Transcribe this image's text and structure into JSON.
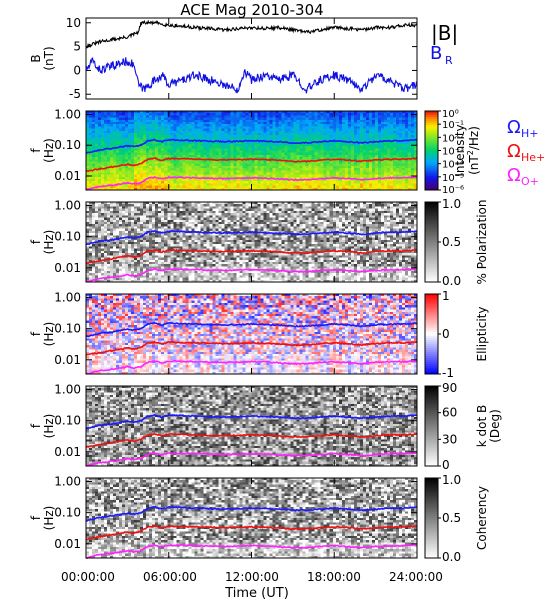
{
  "title": "ACE Mag 2010-304",
  "colors": {
    "B_total": "#000000",
    "B_R": "#1010e0",
    "H_plus": "#1a1aff",
    "He_plus": "#ee1111",
    "O_plus": "#ff22ff"
  },
  "chart_data": [
    {
      "type": "line",
      "panel": "magnetic-field",
      "ylabel": [
        "B",
        "(nT)"
      ],
      "ylim": [
        -6,
        11
      ],
      "yticks": [
        "10",
        "5",
        "0",
        "-5"
      ],
      "legend": [
        "|B|",
        "B"
      ],
      "legend_sub": "R",
      "legend_placement": "right",
      "series": [
        {
          "name": "|B|",
          "color": "#000000",
          "x": [
            0,
            1,
            2,
            3,
            3.8,
            4,
            5,
            6,
            8,
            10,
            12,
            13,
            14,
            15,
            16,
            17,
            18,
            19,
            20,
            21,
            22,
            23,
            24
          ],
          "values": [
            5,
            6,
            6.5,
            7,
            8,
            10,
            10,
            9.5,
            9,
            8.5,
            9,
            8.8,
            9,
            8.5,
            8,
            8.5,
            9,
            8.8,
            8.5,
            9,
            9,
            9.5,
            9.5
          ]
        },
        {
          "name": "B",
          "color": "#1010e0",
          "x": [
            0,
            0.5,
            1,
            2,
            3,
            3.5,
            3.8,
            4.2,
            5,
            5.5,
            6,
            7,
            8,
            9,
            10,
            11,
            11.5,
            12,
            13,
            14,
            15,
            16,
            17,
            18,
            19,
            20,
            21,
            22,
            23,
            24
          ],
          "values": [
            0,
            2,
            0,
            1,
            2,
            1,
            -3,
            -4,
            -2,
            -1,
            -3,
            -2,
            -1,
            -2,
            -3,
            -4,
            0,
            -2,
            -1,
            -2,
            -1,
            -4,
            -2,
            -1,
            -2,
            -4,
            -1,
            -2,
            -4,
            -3
          ]
        }
      ]
    },
    {
      "type": "heatmap",
      "panel": "power-spectrum",
      "ylabel": [
        "f",
        "(Hz)"
      ],
      "yticks": [
        "1.00",
        "0.10",
        "0.01"
      ],
      "colorbar": {
        "label": "Intensity (nT²/Hz)",
        "label_text": [
          "Intensity",
          "(nT",
          "2",
          "/Hz)"
        ],
        "ticks": [
          "10⁰",
          "10⁻¹",
          "10⁻²",
          "10⁻³",
          "10⁻⁴",
          "10⁻⁵",
          "10⁻⁶"
        ],
        "colormap": "rainbow"
      },
      "legend": [
        {
          "label": "Ω",
          "sub": "H+",
          "color": "#1a1aff"
        },
        {
          "label": "Ω",
          "sub": "He+",
          "color": "#ee1111"
        },
        {
          "label": "Ω",
          "sub": "O+",
          "color": "#ff22ff"
        }
      ]
    },
    {
      "type": "heatmap",
      "panel": "polarization",
      "ylabel": [
        "f",
        "(Hz)"
      ],
      "yticks": [
        "1.00",
        "0.10",
        "0.01"
      ],
      "colorbar": {
        "label": "% Polarization",
        "ticks": [
          "1.0",
          "0.5",
          "0.0"
        ],
        "colormap": "gray"
      }
    },
    {
      "type": "heatmap",
      "panel": "ellipticity",
      "ylabel": [
        "f",
        "(Hz)"
      ],
      "yticks": [
        "1.00",
        "0.10",
        "0.01"
      ],
      "colorbar": {
        "label": "Ellipticity",
        "ticks": [
          "1",
          "0",
          "-1"
        ],
        "colormap": "bluewhitered"
      }
    },
    {
      "type": "heatmap",
      "panel": "k-dot-b",
      "ylabel": [
        "f",
        "(Hz)"
      ],
      "yticks": [
        "1.00",
        "0.10",
        "0.01"
      ],
      "colorbar": {
        "label": "k dot B (Deg)",
        "label_text": [
          "k dot B",
          "(Deg)"
        ],
        "ticks": [
          "90",
          "60",
          "30",
          "0"
        ],
        "colormap": "gray"
      }
    },
    {
      "type": "heatmap",
      "panel": "coherency",
      "ylabel": [
        "f",
        "(Hz)"
      ],
      "yticks": [
        "1.00",
        "0.10",
        "0.01"
      ],
      "colorbar": {
        "label": "Coherency",
        "ticks": [
          "1.0",
          "0.5",
          "0.0"
        ],
        "colormap": "gray"
      }
    }
  ],
  "gyrofrequency": {
    "x": [
      0,
      1,
      2,
      3,
      3.5,
      4,
      4.5,
      5,
      5.5,
      6,
      8,
      10,
      12,
      13,
      14,
      15,
      16,
      17,
      18,
      19,
      20,
      21,
      22,
      23,
      24
    ],
    "H_plus": [
      0.055,
      0.07,
      0.08,
      0.095,
      0.09,
      0.1,
      0.14,
      0.15,
      0.13,
      0.15,
      0.14,
      0.13,
      0.14,
      0.135,
      0.13,
      0.12,
      0.12,
      0.13,
      0.14,
      0.13,
      0.12,
      0.13,
      0.14,
      0.14,
      0.15
    ],
    "He_plus": [
      0.014,
      0.017,
      0.02,
      0.024,
      0.022,
      0.025,
      0.035,
      0.037,
      0.032,
      0.037,
      0.035,
      0.033,
      0.035,
      0.034,
      0.032,
      0.03,
      0.03,
      0.033,
      0.035,
      0.033,
      0.03,
      0.033,
      0.035,
      0.035,
      0.037
    ],
    "O_plus": [
      0.0035,
      0.0045,
      0.005,
      0.006,
      0.0055,
      0.006,
      0.0085,
      0.009,
      0.008,
      0.009,
      0.0087,
      0.0082,
      0.0087,
      0.0085,
      0.008,
      0.0075,
      0.0075,
      0.0082,
      0.0087,
      0.0082,
      0.0075,
      0.0082,
      0.0087,
      0.0087,
      0.0092
    ]
  },
  "x_axis": {
    "ticks": [
      "00:00:00",
      "06:00:00",
      "12:00:00",
      "18:00:00",
      "24:00:00"
    ],
    "label": "Time (UT)",
    "range_hours": [
      0,
      24
    ]
  }
}
